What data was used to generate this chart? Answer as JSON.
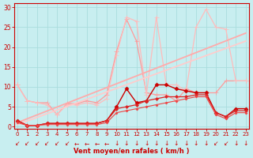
{
  "background_color": "#c8eef0",
  "grid_color": "#aadddd",
  "xlabel": "Vent moyen/en rafales ( km/h )",
  "x_ticks": [
    0,
    1,
    2,
    3,
    4,
    5,
    6,
    7,
    8,
    9,
    10,
    11,
    12,
    13,
    14,
    15,
    16,
    17,
    18,
    19,
    20,
    21,
    22,
    23
  ],
  "ylim": [
    -0.5,
    31
  ],
  "xlim": [
    -0.3,
    23.3
  ],
  "y_ticks": [
    0,
    5,
    10,
    15,
    20,
    25,
    30
  ],
  "series": [
    {
      "label": "line_pink_volatile1",
      "color": "#ff9999",
      "lw": 0.9,
      "marker": "+",
      "markersize": 4,
      "x": [
        0,
        1,
        2,
        3,
        4,
        5,
        6,
        7,
        8,
        9,
        10,
        11,
        12,
        13,
        14,
        15,
        16,
        17,
        18,
        19,
        20,
        21,
        22,
        23
      ],
      "y": [
        10.5,
        6.5,
        6.0,
        6.0,
        3.0,
        5.8,
        5.8,
        6.5,
        6.0,
        8.0,
        19.0,
        27.0,
        21.5,
        8.5,
        8.0,
        8.0,
        6.5,
        9.5,
        8.5,
        8.5,
        8.5,
        11.5,
        11.5,
        11.5
      ]
    },
    {
      "label": "line_pink_volatile2",
      "color": "#ffbbbb",
      "lw": 0.9,
      "marker": "+",
      "markersize": 4,
      "x": [
        0,
        1,
        2,
        3,
        4,
        5,
        6,
        7,
        8,
        9,
        10,
        11,
        12,
        13,
        14,
        15,
        16,
        17,
        18,
        19,
        20,
        21,
        22,
        23
      ],
      "y": [
        10.5,
        6.5,
        6.0,
        5.5,
        3.0,
        5.5,
        5.5,
        6.0,
        5.5,
        7.0,
        18.0,
        27.5,
        26.5,
        8.0,
        27.5,
        10.5,
        10.5,
        9.0,
        25.0,
        29.5,
        25.0,
        24.5,
        11.5,
        11.5
      ]
    },
    {
      "label": "line_diag_upper",
      "color": "#ffaaaa",
      "lw": 1.3,
      "marker": null,
      "x": [
        0,
        23
      ],
      "y": [
        1.0,
        23.5
      ]
    },
    {
      "label": "line_diag_lower",
      "color": "#ffcccc",
      "lw": 1.3,
      "marker": null,
      "x": [
        0,
        23
      ],
      "y": [
        0.5,
        21.5
      ]
    },
    {
      "label": "line_red_volatile",
      "color": "#cc0000",
      "lw": 1.0,
      "marker": "D",
      "markersize": 2.5,
      "x": [
        0,
        1,
        2,
        3,
        4,
        5,
        6,
        7,
        8,
        9,
        10,
        11,
        12,
        13,
        14,
        15,
        16,
        17,
        18,
        19,
        20,
        21,
        22,
        23
      ],
      "y": [
        1.5,
        0.3,
        0.3,
        0.8,
        0.8,
        0.8,
        0.8,
        0.8,
        0.8,
        1.5,
        5.0,
        9.5,
        6.0,
        6.5,
        10.5,
        10.5,
        9.5,
        9.0,
        8.5,
        8.5,
        3.5,
        2.5,
        4.5,
        4.5
      ]
    },
    {
      "label": "line_red_medium",
      "color": "#dd2222",
      "lw": 0.9,
      "marker": "D",
      "markersize": 2,
      "x": [
        0,
        1,
        2,
        3,
        4,
        5,
        6,
        7,
        8,
        9,
        10,
        11,
        12,
        13,
        14,
        15,
        16,
        17,
        18,
        19,
        20,
        21,
        22,
        23
      ],
      "y": [
        1.5,
        0.3,
        0.3,
        0.8,
        0.8,
        0.8,
        0.8,
        0.8,
        0.8,
        1.5,
        4.5,
        5.0,
        5.5,
        6.5,
        7.0,
        7.5,
        7.5,
        7.5,
        8.0,
        8.0,
        3.5,
        2.5,
        4.0,
        4.0
      ]
    },
    {
      "label": "line_red_smooth",
      "color": "#ee4444",
      "lw": 0.8,
      "marker": "D",
      "markersize": 1.5,
      "x": [
        0,
        1,
        2,
        3,
        4,
        5,
        6,
        7,
        8,
        9,
        10,
        11,
        12,
        13,
        14,
        15,
        16,
        17,
        18,
        19,
        20,
        21,
        22,
        23
      ],
      "y": [
        1.0,
        0.3,
        0.3,
        0.5,
        0.5,
        0.5,
        0.5,
        0.5,
        0.5,
        1.0,
        3.5,
        4.0,
        4.5,
        5.0,
        5.5,
        6.0,
        6.5,
        7.0,
        7.5,
        7.5,
        3.0,
        2.0,
        3.5,
        3.5
      ]
    }
  ],
  "wind_symbols": {
    "color": "#cc0000",
    "fontsize": 5.5,
    "x": [
      0,
      1,
      2,
      3,
      4,
      5,
      6,
      7,
      8,
      9,
      10,
      11,
      12,
      13,
      14,
      15,
      16,
      17,
      18,
      19,
      20,
      21,
      22,
      23
    ],
    "symbols": [
      "↙",
      "↙",
      "↙",
      "↙",
      "↙",
      "↙",
      "←",
      "←",
      "←",
      "←",
      "↓",
      "↓",
      "↓",
      "↓",
      "↓",
      "↓",
      "↓",
      "↓",
      "↓",
      "↓",
      "↙",
      "↙",
      "↓",
      "↓"
    ]
  }
}
